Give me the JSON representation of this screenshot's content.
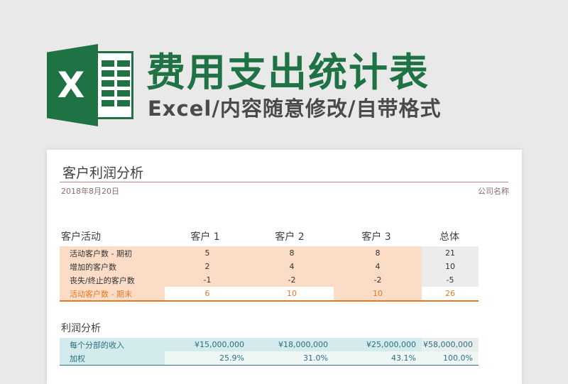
{
  "banner": {
    "logo_letter": "X",
    "title": "费用支出统计表",
    "subtitle": "Excel/内容随意修改/自带格式"
  },
  "colors": {
    "brand_green": "#1f7244",
    "activity_fill": "#fbdcc6",
    "activity_accent": "#e07b2a",
    "negative": "#c00000",
    "profit_fill": "#d3ebec",
    "profit_text": "#2c6f80"
  },
  "card": {
    "title": "客户利润分析",
    "date": "2018年8月20日",
    "company": "公司名称"
  },
  "activity": {
    "section_label": "客户活动",
    "columns": [
      "客户 1",
      "客户 2",
      "客户 3",
      "总体"
    ],
    "rows": [
      {
        "label": "活动客户数 - 期初",
        "values": [
          "5",
          "8",
          "8",
          "21"
        ]
      },
      {
        "label": "增加的客户数",
        "values": [
          "2",
          "4",
          "4",
          "10"
        ]
      },
      {
        "label": "丧失/终止的客户数",
        "values": [
          "-1",
          "-2",
          "-2",
          "-5"
        ]
      },
      {
        "label": "活动客户数 - 期末",
        "values": [
          "6",
          "10",
          "10",
          "26"
        ]
      }
    ]
  },
  "profit": {
    "section_label": "利润分析",
    "rows": [
      {
        "label": "每个分部的收入",
        "values": [
          "¥15,000,000",
          "¥18,000,000",
          "¥25,000,000",
          "¥58,000,000"
        ]
      },
      {
        "label": "加权",
        "values": [
          "25.9%",
          "31.0%",
          "43.1%",
          "100.0%"
        ]
      }
    ]
  }
}
